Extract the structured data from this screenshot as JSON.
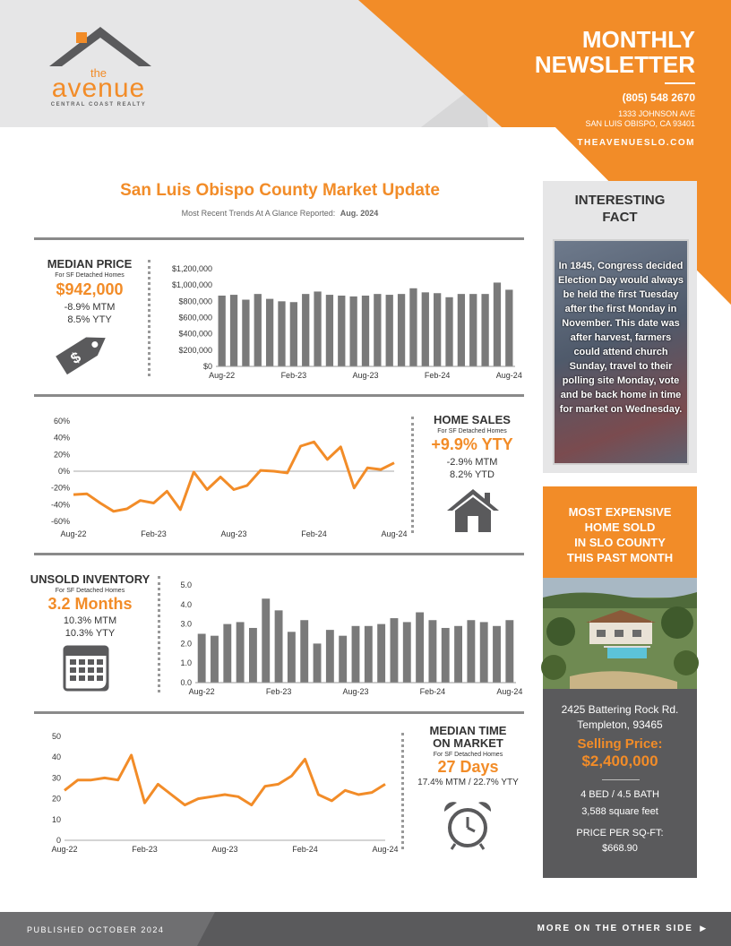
{
  "colors": {
    "accent": "#f28c28",
    "gray_dark": "#5a5a5c",
    "gray_light": "#e6e6e7",
    "bar": "#7a7a7a"
  },
  "header": {
    "logo_the": "the",
    "logo_name": "avenue",
    "logo_sub": "CENTRAL COAST REALTY",
    "title_line1": "MONTHLY",
    "title_line2": "NEWSLETTER",
    "phone": "(805) 548 2670",
    "address_line1": "1333 JOHNSON AVE",
    "address_line2": "SAN LUIS OBISPO, CA 93401",
    "website": "THEAVENUESLO.COM"
  },
  "market": {
    "title": "San Luis Obispo County Market Update",
    "subtitle_prefix": "Most Recent Trends At A Glance Reported:",
    "subtitle_date": "Aug. 2024"
  },
  "median_price": {
    "title": "MEDIAN PRICE",
    "note": "For SF Detached Homes",
    "value": "$942,000",
    "mtm": "-8.9% MTM",
    "ytd": "8.5% YTY",
    "icon": "price-tag-icon"
  },
  "home_sales": {
    "title": "HOME SALES",
    "note": "For SF Detached Homes",
    "value": "+9.9% YTY",
    "mtm": "-2.9% MTM",
    "ytd": "8.2% YTD",
    "icon": "house-icon"
  },
  "unsold_inventory": {
    "title": "UNSOLD INVENTORY",
    "note": "For SF Detached Homes",
    "value": "3.2 Months",
    "mtm": "10.3% MTM",
    "ytd": "10.3% YTY",
    "icon": "calendar-icon"
  },
  "median_time": {
    "title_line1": "MEDIAN TIME",
    "title_line2": "ON MARKET",
    "note": "For SF Detached Homes",
    "value": "27 Days",
    "change": "17.4% MTM / 22.7% YTY",
    "icon": "alarm-clock-icon"
  },
  "chart_data": [
    {
      "id": "median_price",
      "type": "bar",
      "x_tick_labels": [
        "Aug-22",
        "Feb-23",
        "Aug-23",
        "Feb-24",
        "Aug-24"
      ],
      "y_tick_labels": [
        "$0",
        "$200,000",
        "$400,000",
        "$600,000",
        "$800,000",
        "$1,000,000",
        "$1,200,000"
      ],
      "ylim": [
        0,
        1200000
      ],
      "values": [
        870000,
        880000,
        820000,
        890000,
        830000,
        800000,
        790000,
        890000,
        920000,
        880000,
        870000,
        860000,
        870000,
        890000,
        880000,
        890000,
        960000,
        910000,
        900000,
        850000,
        890000,
        890000,
        890000,
        1030000,
        942000
      ]
    },
    {
      "id": "home_sales",
      "type": "line",
      "x_tick_labels": [
        "Aug-22",
        "Feb-23",
        "Aug-23",
        "Feb-24",
        "Aug-24"
      ],
      "y_tick_labels": [
        "-60%",
        "-40%",
        "-20%",
        "0%",
        "20%",
        "40%",
        "60%"
      ],
      "ylim": [
        -60,
        60
      ],
      "values": [
        -28,
        -27,
        -38,
        -48,
        -45,
        -35,
        -38,
        -24,
        -46,
        -1,
        -22,
        -7,
        -22,
        -17,
        1,
        0,
        -2,
        30,
        35,
        14,
        29,
        -20,
        4,
        2,
        10
      ]
    },
    {
      "id": "unsold_inventory",
      "type": "bar",
      "x_tick_labels": [
        "Aug-22",
        "Feb-23",
        "Aug-23",
        "Feb-24",
        "Aug-24"
      ],
      "y_tick_labels": [
        "0.0",
        "1.0",
        "2.0",
        "3.0",
        "4.0",
        "5.0"
      ],
      "ylim": [
        0,
        5
      ],
      "values": [
        2.5,
        2.4,
        3.0,
        3.1,
        2.8,
        4.3,
        3.7,
        2.6,
        3.2,
        2.0,
        2.7,
        2.4,
        2.9,
        2.9,
        3.0,
        3.3,
        3.1,
        3.6,
        3.2,
        2.8,
        2.9,
        3.2,
        3.1,
        2.9,
        3.2
      ]
    },
    {
      "id": "median_time",
      "type": "line",
      "x_tick_labels": [
        "Aug-22",
        "Feb-23",
        "Aug-23",
        "Feb-24",
        "Aug-24"
      ],
      "y_tick_labels": [
        "0",
        "10",
        "20",
        "30",
        "40",
        "50"
      ],
      "ylim": [
        0,
        50
      ],
      "values": [
        24,
        29,
        29,
        30,
        29,
        41,
        18,
        27,
        22,
        17,
        20,
        21,
        22,
        21,
        17,
        26,
        27,
        31,
        39,
        22,
        19,
        24,
        22,
        23,
        27
      ]
    }
  ],
  "fact": {
    "title_line1": "INTERESTING",
    "title_line2": "FACT",
    "text": "In 1845, Congress decided Election Day would always be held the first Tuesday after the first Monday in November. This date was after harvest, farmers could attend church Sunday, travel to their polling site Monday, vote and be back home in time for market on Wednesday."
  },
  "most_expensive": {
    "title_line1": "MOST EXPENSIVE",
    "title_line2": "HOME SOLD",
    "title_line3": "IN SLO COUNTY",
    "title_line4": "THIS PAST MONTH",
    "address_line1": "2425 Battering Rock Rd.",
    "address_line2": "Templeton, 93465",
    "price_label": "Selling Price:",
    "price": "$2,400,000",
    "beds_baths": "4 BED / 4.5 BATH",
    "sqft": "3,588 square feet",
    "ppsf_label": "PRICE PER SQ-FT:",
    "ppsf": "$668.90"
  },
  "footer": {
    "published": "PUBLISHED OCTOBER 2024",
    "more": "MORE ON THE OTHER SIDE",
    "more_icon": "play-arrow-icon"
  }
}
